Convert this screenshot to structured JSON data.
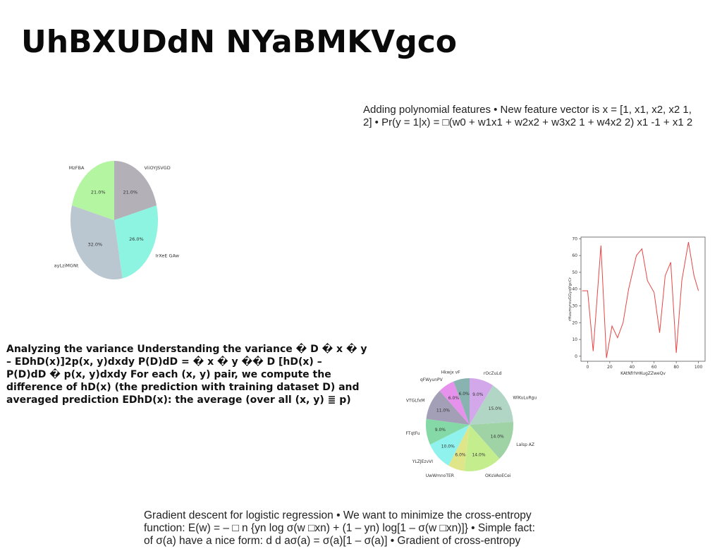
{
  "page": {
    "title": "UhBXUDdN NYaBMKVgco",
    "text_top": [
      "Adding polynomial features • New feature vector is x = [1, x1, x2, x2 1,",
      "2] • Pr(y = 1|x) = □(w0 + w1x1 + w2x2 + w3x2 1 + w4x2 2) x1 -1 + x1 2"
    ],
    "text_left": [
      "Analyzing the variance Understanding the variance � D � x � y",
      "– EDhD(x)]2p(x, y)dxdy P(D)dD = � x � y �� D [hD(x) –",
      "P(D)dD � p(x, y)dxdy For each (x, y) pair, we compute the",
      "difference of hD(x) (the prediction with training dataset D) and",
      "averaged prediction EDhD(x): the average (over all (x, y) ≣ p)"
    ],
    "text_bottom": [
      "Gradient descent for logistic regression • We want to minimize the cross-entropy",
      "function: E(w) = – □ n {yn log σ(w □xn) + (1 – yn) log[1 – σ(w □xn)]} • Simple fact:",
      "of σ(a) have a nice form: d d aσ(a) = σ(a)[1 – σ(a)] • Gradient of cross-entropy"
    ]
  },
  "chart_data": [
    {
      "type": "pie",
      "labels": [
        "ViiOYJSVGD",
        "IrXeE GAw",
        "ayLziMGNt",
        "MzFBA"
      ],
      "values": [
        21.0,
        26.0,
        32.0,
        21.0
      ],
      "value_labels": [
        "21.0%",
        "26.0%",
        "32.0%",
        "21.0%"
      ],
      "colors": [
        "#b3b0b8",
        "#8cf4e0",
        "#bac7d0",
        "#b3f5a0"
      ],
      "start_angle_deg": 90,
      "direction": "clockwise"
    },
    {
      "type": "line",
      "x": [
        0,
        4,
        7,
        10,
        13,
        17,
        20,
        23,
        26,
        30,
        34,
        37,
        41,
        44,
        48,
        51,
        54,
        58,
        61,
        64,
        68,
        71,
        74,
        78,
        81,
        84,
        88,
        91,
        94
      ],
      "xlabel": "KAtNfrhHKugZZweQv",
      "ylabel": "rHuumyrxuGGyqYgcCr",
      "xlim": [
        -6,
        106
      ],
      "ylim": [
        -3,
        71
      ],
      "xticks": [
        0,
        20,
        40,
        60,
        80,
        100
      ],
      "yticks": [
        0,
        10,
        20,
        30,
        40,
        50,
        60,
        70
      ],
      "series": [
        {
          "color": "#e84545",
          "x": [
            -5,
            0,
            5,
            12,
            17,
            22,
            27,
            32,
            37,
            44,
            49,
            54,
            60,
            65,
            70,
            75,
            80,
            85,
            91,
            96,
            100
          ],
          "y": [
            39,
            39,
            3,
            66,
            -1,
            18,
            11,
            20,
            40,
            60,
            64,
            45,
            38,
            14,
            48,
            56,
            2,
            45,
            68,
            48,
            39
          ]
        }
      ]
    },
    {
      "type": "pie",
      "labels": [
        "rOcZuLd",
        "WlKuLuRgu",
        "Lalsp AZ",
        "OKsVAoECei",
        "UwWmnoTER",
        "YLZJEzvVI",
        "FTqtFu",
        "VTGLfxM",
        "qFWyunPV",
        "Hkwjx vF"
      ],
      "values": [
        9.0,
        15.0,
        14.0,
        14.0,
        6.0,
        10.0,
        9.0,
        11.0,
        6.0,
        6.0
      ],
      "value_labels": [
        "9.0%",
        "15.0%",
        "14.0%",
        "14.0%",
        "6.0%",
        "10.0%",
        "9.0%",
        "11.0%",
        "6.0%",
        "6.0%"
      ],
      "colors": [
        "#d3a8ea",
        "#b2d6c6",
        "#9fd3a6",
        "#c4ee8e",
        "#dfe68a",
        "#8ff2ed",
        "#85d9a6",
        "#a39fb7",
        "#e691ec",
        "#88b3b1"
      ],
      "start_angle_deg": 90,
      "direction": "clockwise"
    }
  ]
}
